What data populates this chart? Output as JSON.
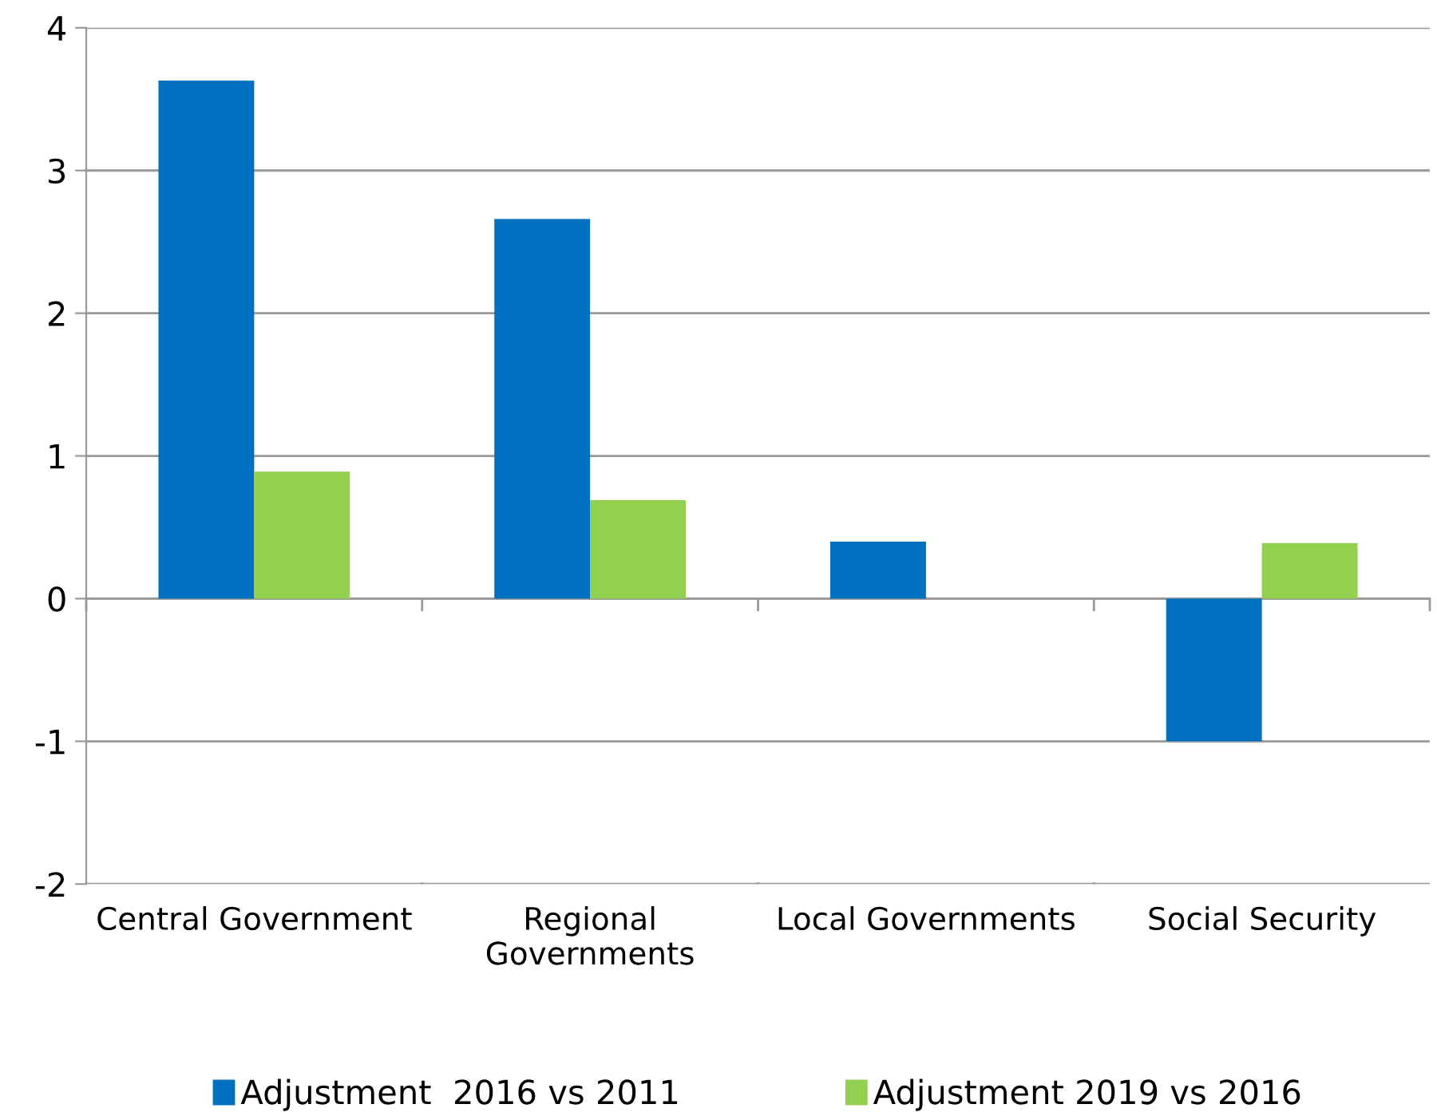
{
  "chart_data": {
    "type": "bar",
    "categories": [
      "Central Government",
      "Regional\nGovernments",
      "Local Governments",
      "Social Security"
    ],
    "series": [
      {
        "name": "Adjustment  2016 vs 2011",
        "color": "#0070c0",
        "values": [
          3.63,
          2.66,
          0.4,
          -1.0
        ]
      },
      {
        "name": "Adjustment 2019 vs 2016",
        "color": "#92d050",
        "values": [
          0.89,
          0.69,
          null,
          0.39
        ]
      }
    ],
    "ylim": [
      -2,
      4
    ],
    "yticks": [
      -2,
      -1,
      0,
      1,
      2,
      3,
      4
    ],
    "grid": "y",
    "legend": "bottom"
  }
}
